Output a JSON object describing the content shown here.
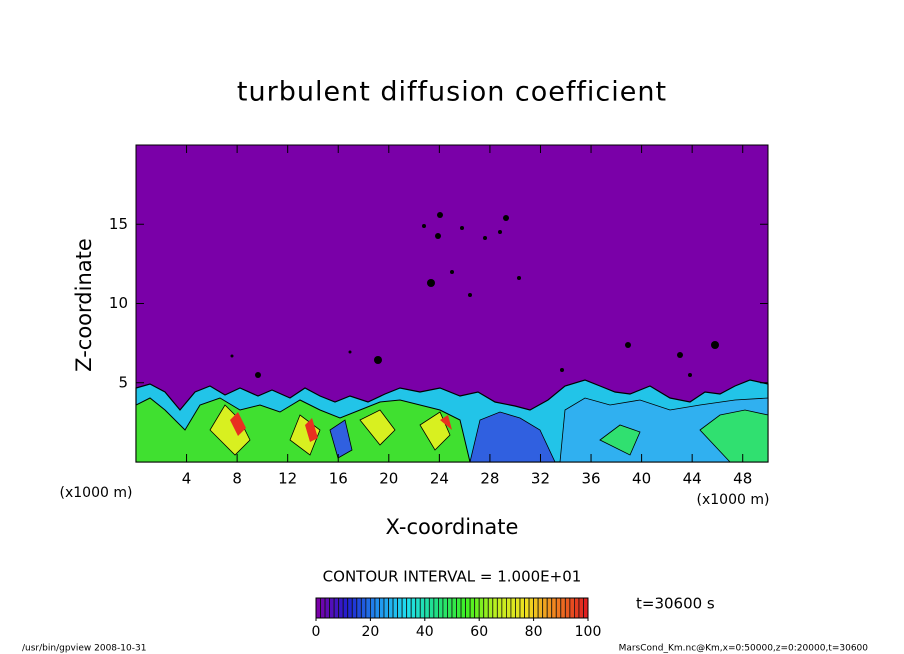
{
  "chart_data": {
    "type": "contour",
    "title": "turbulent diffusion coefficient",
    "xlabel": "X-coordinate",
    "ylabel": "Z-coordinate",
    "xunit": "(x1000 m)",
    "yunit": "(x1000 m)",
    "xlim": [
      0,
      50
    ],
    "ylim": [
      0,
      20
    ],
    "xticks": [
      4,
      8,
      12,
      16,
      20,
      24,
      28,
      32,
      36,
      40,
      44,
      48
    ],
    "yticks": [
      5,
      10,
      15
    ],
    "contour_interval_label": "CONTOUR INTERVAL = 1.000E+01",
    "time_label": "t=30600 s",
    "colorbar": {
      "lim": [
        0,
        100
      ],
      "ticks": [
        0,
        20,
        40,
        60,
        80,
        100
      ],
      "colors": [
        "#7a00a8",
        "#2020d0",
        "#2090f0",
        "#20e0f0",
        "#20e080",
        "#40f020",
        "#c0f020",
        "#f0e020",
        "#f08020",
        "#e02020"
      ]
    }
  },
  "footer": {
    "left": "/usr/bin/gpview  2008-10-31",
    "right": "MarsCond_Km.nc@Km,x=0:50000,z=0:20000,t=30600"
  }
}
